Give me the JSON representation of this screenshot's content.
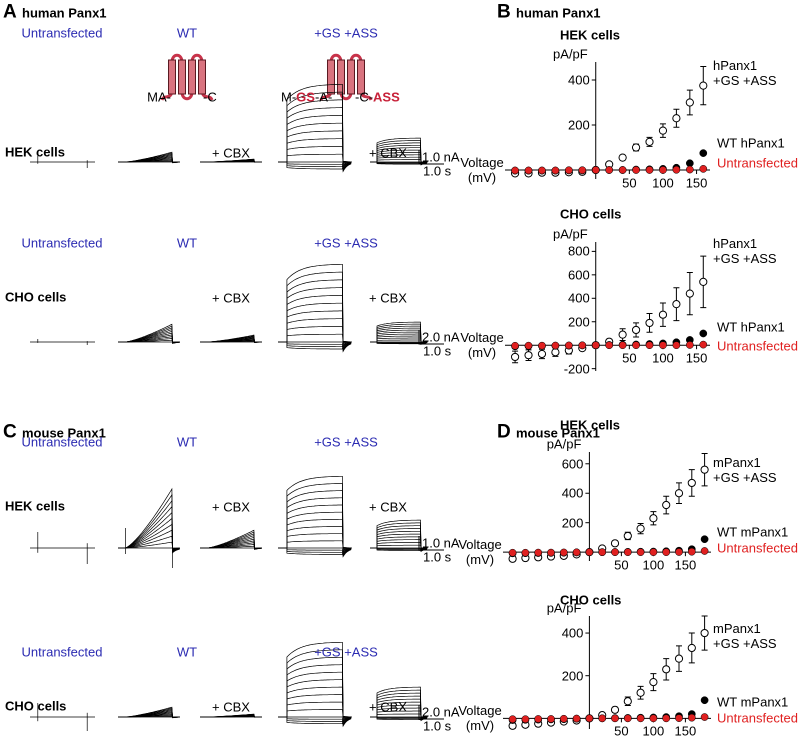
{
  "figure_panels": [
    {
      "letter": "A",
      "title": "human Panx1"
    },
    {
      "letter": "B",
      "title": "human Panx1"
    },
    {
      "letter": "C",
      "title": "mouse Panx1"
    },
    {
      "letter": "D",
      "title": "mouse Panx1"
    }
  ],
  "topology": {
    "wt": [
      "MA-",
      "-C"
    ],
    "gs_ass": [
      "M-",
      "GS",
      "-A-",
      "-C-",
      "ASS"
    ]
  },
  "trace_rows": [
    {
      "columns": [
        "Untransfected",
        "WT",
        "+GS +ASS"
      ],
      "cells": "HEK cells",
      "cbx": [
        "+ CBX",
        "+ CBX"
      ],
      "scale": [
        "1.0 nA",
        "1.0 s"
      ]
    },
    {
      "columns": [
        "Untransfected",
        "WT",
        "+GS +ASS"
      ],
      "cells": "CHO cells",
      "cbx": [
        "+ CBX",
        "+ CBX"
      ],
      "scale": [
        "2.0 nA",
        "1.0 s"
      ]
    },
    {
      "columns": [
        "Untransfected",
        "WT",
        "+GS +ASS"
      ],
      "cells": "HEK cells",
      "cbx": [
        "+ CBX",
        "+ CBX"
      ],
      "scale": [
        "1.0 nA",
        "1.0 s"
      ]
    },
    {
      "columns": [
        "Untransfected",
        "WT",
        "+GS +ASS"
      ],
      "cells": "CHO cells",
      "cbx": [
        "+ CBX",
        "+ CBX"
      ],
      "scale": [
        "2.0 nA",
        "1.0 s"
      ]
    }
  ],
  "chart_data": [
    {
      "type": "scatter",
      "subtitle": "HEK cells",
      "y_label": "pA/pF",
      "x_label": "Voltage (mV)",
      "x": [
        -120,
        -100,
        -80,
        -60,
        -40,
        -20,
        0,
        20,
        40,
        60,
        80,
        100,
        120,
        140,
        160
      ],
      "xlim": [
        -135,
        170
      ],
      "ylim": [
        -40,
        480
      ],
      "xticks": [
        50,
        100,
        150
      ],
      "yticks": [
        200,
        400
      ],
      "series": [
        {
          "name": "hPanx1 +GS +ASS",
          "color": "#000000",
          "marker": "open",
          "values": [
            -15,
            -15,
            -12,
            -12,
            -10,
            -8,
            0,
            25,
            55,
            100,
            125,
            175,
            230,
            300,
            375
          ],
          "errors": [
            6,
            6,
            6,
            6,
            5,
            5,
            0,
            8,
            10,
            15,
            20,
            30,
            40,
            55,
            85
          ]
        },
        {
          "name": "WT hPanx1",
          "color": "#000000",
          "marker": "filled",
          "values": [
            -3,
            -3,
            -3,
            -3,
            -2,
            -2,
            0,
            0,
            0,
            2,
            3,
            5,
            10,
            30,
            75
          ]
        },
        {
          "name": "Untransfected",
          "color": "#e02020",
          "marker": "filled",
          "values": [
            -2,
            -2,
            -2,
            -2,
            -1,
            -1,
            0,
            0,
            0,
            0,
            0,
            0,
            1,
            2,
            5
          ]
        }
      ]
    },
    {
      "type": "scatter",
      "subtitle": "CHO cells",
      "y_label": "pA/pF",
      "x_label": "Voltage (mV)",
      "x": [
        -120,
        -100,
        -80,
        -60,
        -40,
        -20,
        0,
        20,
        40,
        60,
        80,
        100,
        120,
        140,
        160
      ],
      "xlim": [
        -135,
        170
      ],
      "ylim": [
        -220,
        880
      ],
      "xticks": [
        50,
        100,
        150
      ],
      "yticks": [
        -200,
        200,
        400,
        600,
        800
      ],
      "series": [
        {
          "name": "hPanx1 +GS +ASS",
          "color": "#000000",
          "marker": "open",
          "values": [
            -100,
            -85,
            -75,
            -60,
            -45,
            -25,
            0,
            30,
            90,
            130,
            190,
            260,
            350,
            440,
            540
          ],
          "errors": [
            50,
            45,
            40,
            35,
            30,
            20,
            0,
            20,
            50,
            60,
            80,
            100,
            140,
            180,
            220
          ]
        },
        {
          "name": "WT hPanx1",
          "color": "#000000",
          "marker": "filled",
          "values": [
            -10,
            -8,
            -6,
            -5,
            -4,
            -2,
            0,
            2,
            4,
            6,
            10,
            15,
            25,
            45,
            100
          ]
        },
        {
          "name": "Untransfected",
          "color": "#e02020",
          "marker": "filled",
          "values": [
            -5,
            -4,
            -4,
            -3,
            -2,
            -1,
            0,
            0,
            0,
            0,
            0,
            0,
            0,
            2,
            5
          ]
        }
      ]
    },
    {
      "type": "scatter",
      "subtitle": "HEK cells",
      "y_label": "pA/pF",
      "x_label": "Voltage (mV)",
      "x": [
        -120,
        -100,
        -80,
        -60,
        -40,
        -20,
        0,
        20,
        40,
        60,
        80,
        100,
        120,
        140,
        160,
        180
      ],
      "xlim": [
        -135,
        190
      ],
      "ylim": [
        -60,
        680
      ],
      "xticks": [
        50,
        100,
        150
      ],
      "yticks": [
        200,
        400,
        600
      ],
      "series": [
        {
          "name": "mPanx1 +GS +ASS",
          "color": "#000000",
          "marker": "open",
          "values": [
            -45,
            -40,
            -35,
            -30,
            -25,
            -15,
            0,
            25,
            60,
            110,
            160,
            230,
            320,
            400,
            470,
            560
          ],
          "errors": [
            15,
            12,
            12,
            10,
            10,
            8,
            0,
            10,
            15,
            25,
            35,
            45,
            60,
            70,
            90,
            110
          ]
        },
        {
          "name": "WT mPanx1",
          "color": "#000000",
          "marker": "filled",
          "values": [
            -8,
            -7,
            -6,
            -5,
            -4,
            -2,
            0,
            0,
            1,
            2,
            3,
            4,
            6,
            10,
            20,
            88
          ]
        },
        {
          "name": "Untransfected",
          "color": "#e02020",
          "marker": "filled",
          "values": [
            -4,
            -4,
            -3,
            -3,
            -2,
            -1,
            0,
            0,
            0,
            0,
            0,
            0,
            0,
            1,
            3,
            8
          ]
        }
      ]
    },
    {
      "type": "scatter",
      "subtitle": "CHO cells",
      "y_label": "pA/pF",
      "x_label": "Voltage (mV)",
      "x": [
        -120,
        -100,
        -80,
        -60,
        -40,
        -20,
        0,
        20,
        40,
        60,
        80,
        100,
        120,
        140,
        160,
        180
      ],
      "xlim": [
        -135,
        190
      ],
      "ylim": [
        -50,
        480
      ],
      "xticks": [
        50,
        100,
        150
      ],
      "yticks": [
        200,
        400
      ],
      "series": [
        {
          "name": "mPanx1 +GS +ASS",
          "color": "#000000",
          "marker": "open",
          "values": [
            -35,
            -30,
            -25,
            -20,
            -15,
            -10,
            0,
            15,
            40,
            80,
            120,
            170,
            230,
            280,
            330,
            400
          ],
          "errors": [
            12,
            10,
            10,
            8,
            8,
            6,
            0,
            8,
            12,
            20,
            30,
            40,
            50,
            60,
            70,
            80
          ]
        },
        {
          "name": "WT mPanx1",
          "color": "#000000",
          "marker": "filled",
          "values": [
            -8,
            -7,
            -6,
            -5,
            -4,
            -2,
            0,
            0,
            1,
            2,
            3,
            4,
            6,
            10,
            20,
            85
          ]
        },
        {
          "name": "Untransfected",
          "color": "#e02020",
          "marker": "filled",
          "values": [
            -4,
            -4,
            -3,
            -3,
            -2,
            -1,
            0,
            0,
            0,
            0,
            0,
            0,
            0,
            1,
            3,
            6
          ]
        }
      ]
    }
  ]
}
